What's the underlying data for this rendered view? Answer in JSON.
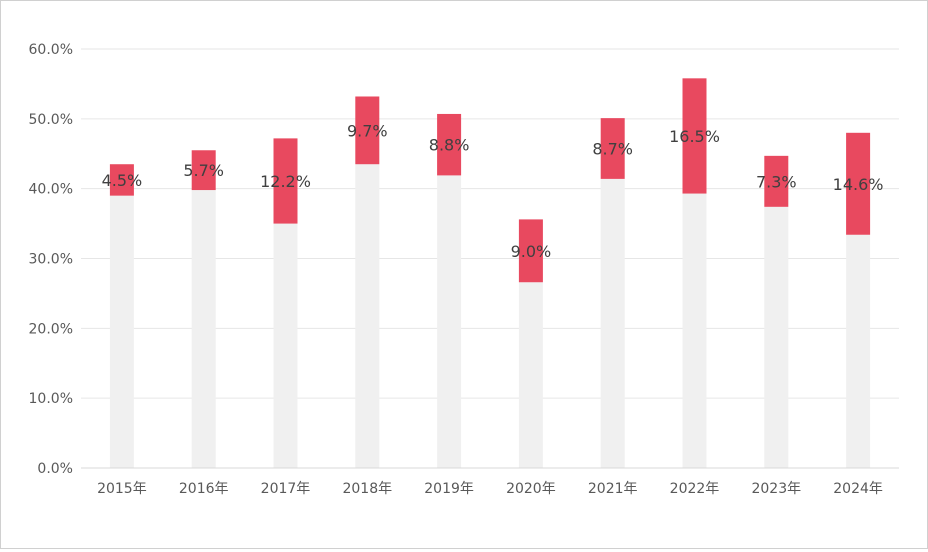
{
  "chart_data": {
    "type": "bar",
    "stacked": true,
    "categories": [
      "2015年",
      "2016年",
      "2017年",
      "2018年",
      "2019年",
      "2020年",
      "2021年",
      "2022年",
      "2023年",
      "2024年"
    ],
    "series": [
      {
        "values": [
          39.0,
          39.8,
          35.0,
          43.5,
          41.9,
          26.6,
          41.4,
          39.3,
          37.4,
          33.4
        ]
      },
      {
        "values": [
          4.5,
          5.7,
          12.2,
          9.7,
          8.8,
          9.0,
          8.7,
          16.5,
          7.3,
          14.6
        ]
      }
    ],
    "data_labels": [
      "4.5%",
      "5.7%",
      "12.2%",
      "9.7%",
      "8.8%",
      "9.0%",
      "8.7%",
      "16.5%",
      "7.3%",
      "14.6%"
    ],
    "y_ticks": [
      "0.0%",
      "10.0%",
      "20.0%",
      "30.0%",
      "40.0%",
      "50.0%",
      "60.0%"
    ],
    "ylim": [
      0,
      60
    ],
    "grid": true,
    "colors": {
      "base": "#f0f0f0",
      "highlight": "#e8495f",
      "grid": "#e6e6e6",
      "axis": "#d9d9d9"
    }
  }
}
